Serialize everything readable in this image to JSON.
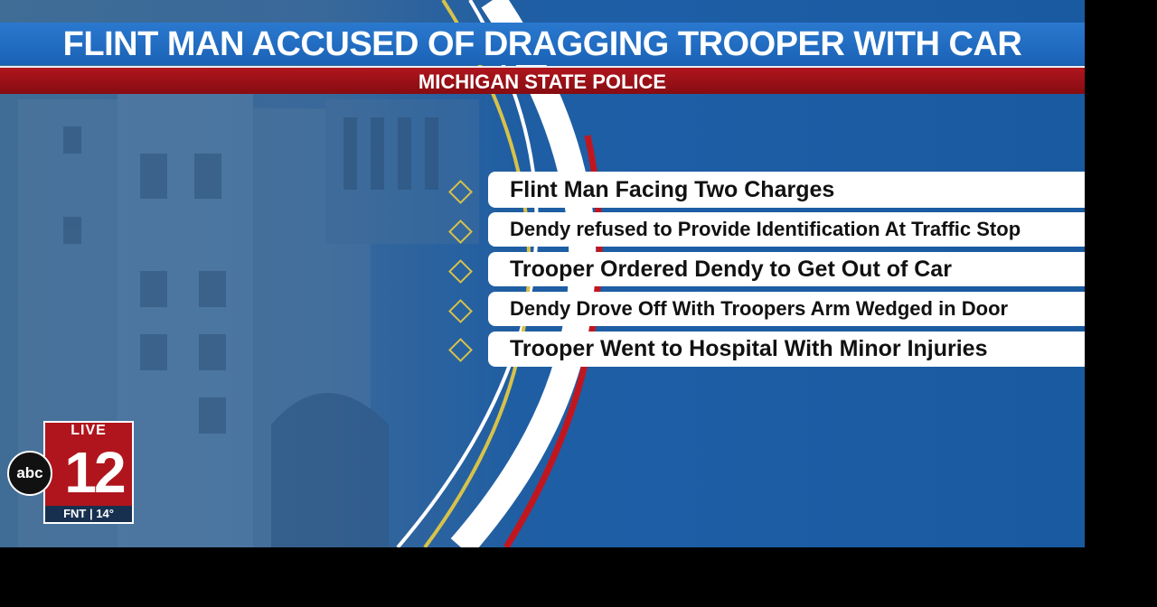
{
  "headline": "FLINT MAN ACCUSED OF DRAGGING TROOPER WITH CAR",
  "subheadline": "MICHIGAN STATE POLICE",
  "bullets": [
    "Flint Man Facing Two Charges",
    "Dendy refused to Provide Identification At Traffic Stop",
    "Trooper Ordered Dendy to Get Out of Car",
    "Dendy Drove Off With Troopers Arm Wedged in Door",
    "Trooper Went to Hospital With Minor Injuries"
  ],
  "logo": {
    "network": "abc",
    "live": "LIVE",
    "channel": "12",
    "station": "FNT",
    "temperature": "14°"
  },
  "colors": {
    "blue": "#1d5ea6",
    "red": "#a3121a",
    "gold": "#d7c24a",
    "white": "#ffffff"
  }
}
